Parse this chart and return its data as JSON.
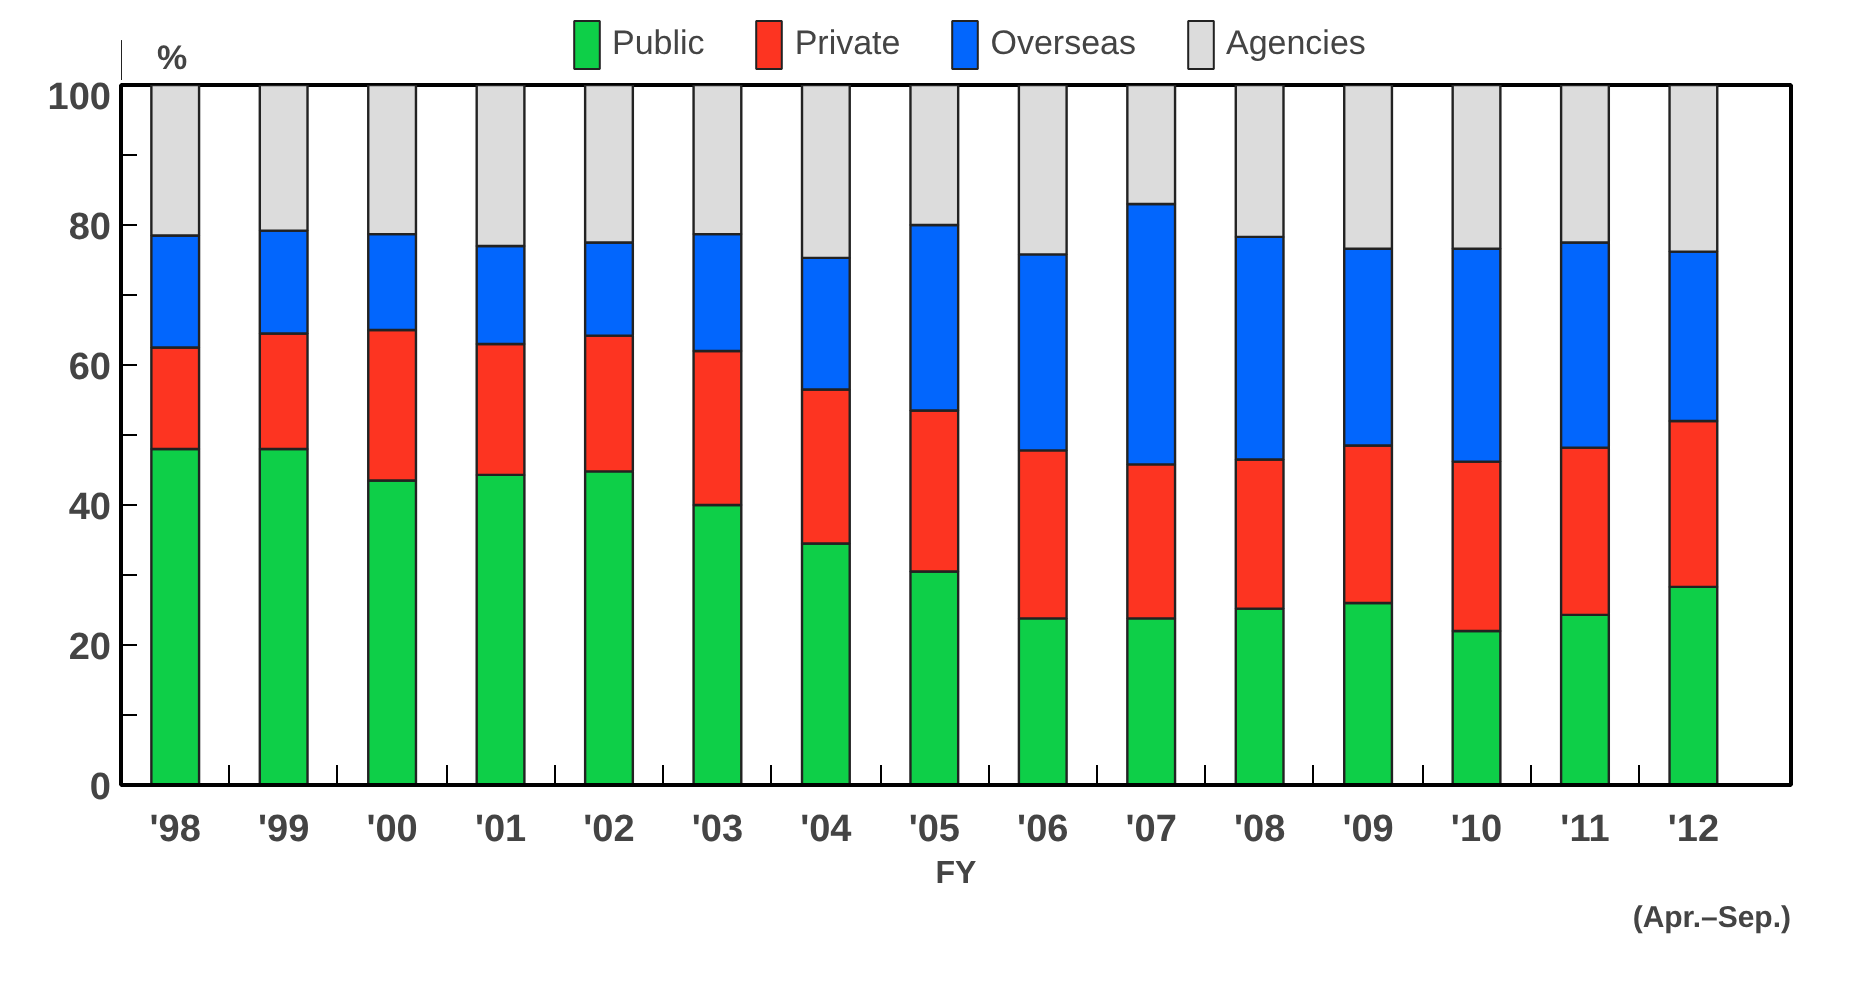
{
  "chart_data": {
    "type": "bar",
    "stacked": true,
    "ylabel": "%",
    "xlabel": "FY",
    "categories": [
      "'98",
      "'99",
      "'00",
      "'01",
      "'02",
      "'03",
      "'04",
      "'05",
      "'06",
      "'07",
      "'08",
      "'09",
      "'10",
      "'11",
      "'12"
    ],
    "series": [
      {
        "name": "Public",
        "color": "#0ecf48",
        "values": [
          48,
          48,
          43.5,
          44.3,
          44.8,
          40,
          34.5,
          30.5,
          23.8,
          23.8,
          25.2,
          26,
          22,
          24.3,
          28.3
        ]
      },
      {
        "name": "Private",
        "color": "#fd3421",
        "values": [
          14.5,
          16.5,
          21.5,
          18.7,
          19.4,
          22,
          22,
          23,
          24,
          22,
          21.3,
          22.5,
          24.2,
          23.9,
          23.7
        ]
      },
      {
        "name": "Overseas",
        "color": "#0266fd",
        "values": [
          16,
          14.7,
          13.7,
          14,
          13.3,
          16.7,
          18.8,
          26.5,
          28,
          37.2,
          31.8,
          28.1,
          30.4,
          29.3,
          24.2
        ]
      },
      {
        "name": "Agencies",
        "color": "#dcdcdc",
        "values": [
          21.5,
          20.8,
          21.3,
          23,
          22.5,
          21.3,
          24.7,
          20,
          24.2,
          17,
          21.7,
          23.4,
          23.4,
          22.5,
          23.8
        ]
      }
    ],
    "ylim": [
      0,
      100
    ],
    "yticks": [
      0,
      {
        "value": 10,
        "label": null
      },
      20,
      {
        "value": 30,
        "label": null
      },
      40,
      {
        "value": 50,
        "label": null
      },
      60,
      {
        "value": 70,
        "label": null
      },
      80,
      {
        "value": 90,
        "label": null
      },
      100
    ],
    "annotations": [
      "(Apr.–Sep.)"
    ],
    "legend": "top",
    "grid": false
  }
}
